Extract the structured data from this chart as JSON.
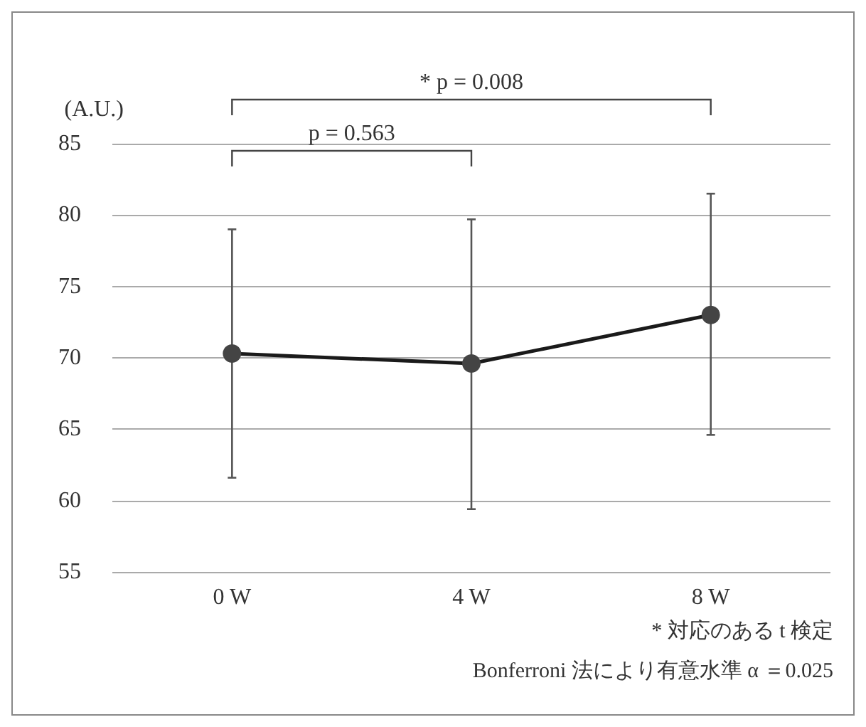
{
  "chart_data": {
    "type": "line",
    "ylabel": "(A.U.)",
    "categories": [
      "0 W",
      "4 W",
      "8 W"
    ],
    "series": [
      {
        "color": "#444444",
        "values": [
          70.3,
          69.6,
          73.0
        ],
        "errors": [
          [
            61.6,
            79.0
          ],
          [
            59.4,
            79.7
          ],
          [
            64.6,
            81.5
          ]
        ]
      }
    ],
    "ylim": [
      55,
      85
    ],
    "yticks": [
      55,
      60,
      65,
      70,
      75,
      80,
      85
    ],
    "grid": "y",
    "marker": "circle",
    "line_style": "solid",
    "annotations": [
      "p = 0.563",
      "* p = 0.008",
      "* 対応のある t 検定",
      "Bonferroni 法により有意水準 α ＝0.025"
    ]
  }
}
